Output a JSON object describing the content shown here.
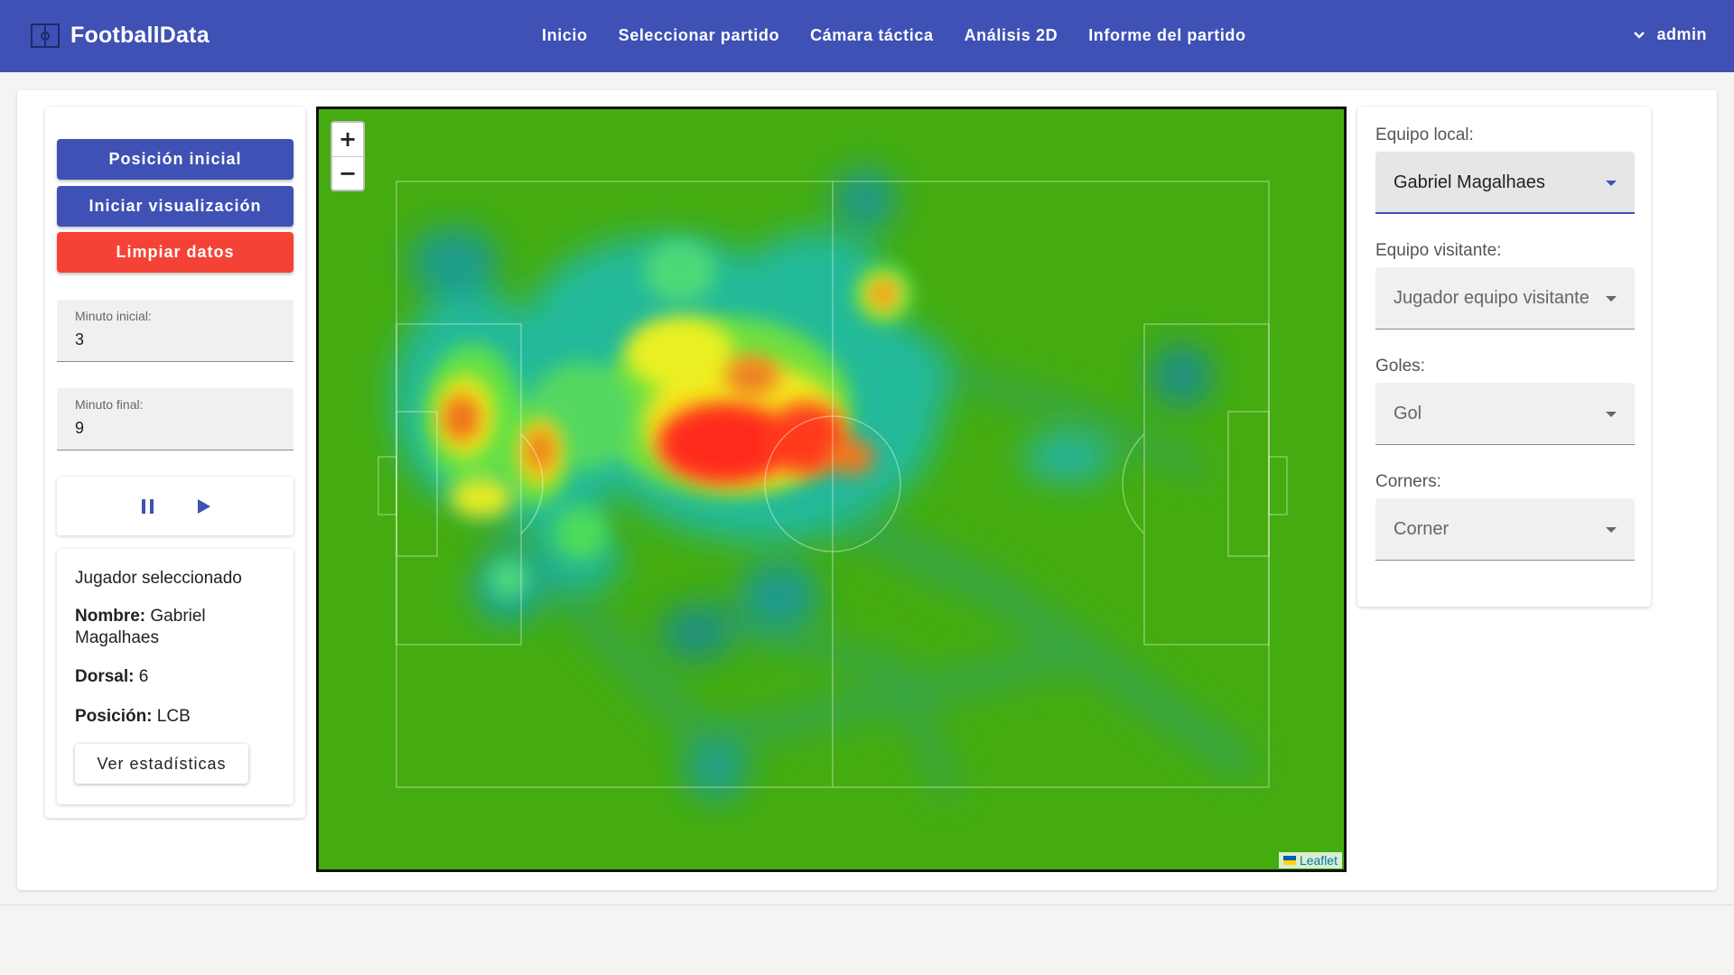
{
  "header": {
    "brand": "FootballData",
    "nav": [
      "Inicio",
      "Seleccionar partido",
      "Cámara táctica",
      "Análisis 2D",
      "Informe del partido"
    ],
    "user": "admin"
  },
  "controls": {
    "initial_position": "Posición inicial",
    "start_visualization": "Iniciar visualización",
    "clear_data": "Limpiar datos"
  },
  "fields": {
    "start_minute": {
      "label": "Minuto inicial:",
      "value": "3"
    },
    "end_minute": {
      "label": "Minuto final:",
      "value": "9"
    }
  },
  "player": {
    "title": "Jugador seleccionado",
    "name_label": "Nombre:",
    "name": "Gabriel Magalhaes",
    "number_label": "Dorsal:",
    "number": "6",
    "position_label": "Posición:",
    "position": "LCB",
    "stats_button": "Ver estadísticas"
  },
  "map": {
    "zoom_in": "+",
    "zoom_out": "−",
    "attribution": "Leaflet"
  },
  "filters": {
    "home_team": {
      "label": "Equipo local:",
      "value": "Gabriel Magalhaes"
    },
    "away_team": {
      "label": "Equipo visitante:",
      "value": "Jugador equipo visitante"
    },
    "goals": {
      "label": "Goles:",
      "value": "Gol"
    },
    "corners": {
      "label": "Corners:",
      "value": "Corner"
    }
  },
  "colors": {
    "primary": "#3f51b5",
    "danger": "#f44336",
    "pitch": "#44ac10"
  }
}
